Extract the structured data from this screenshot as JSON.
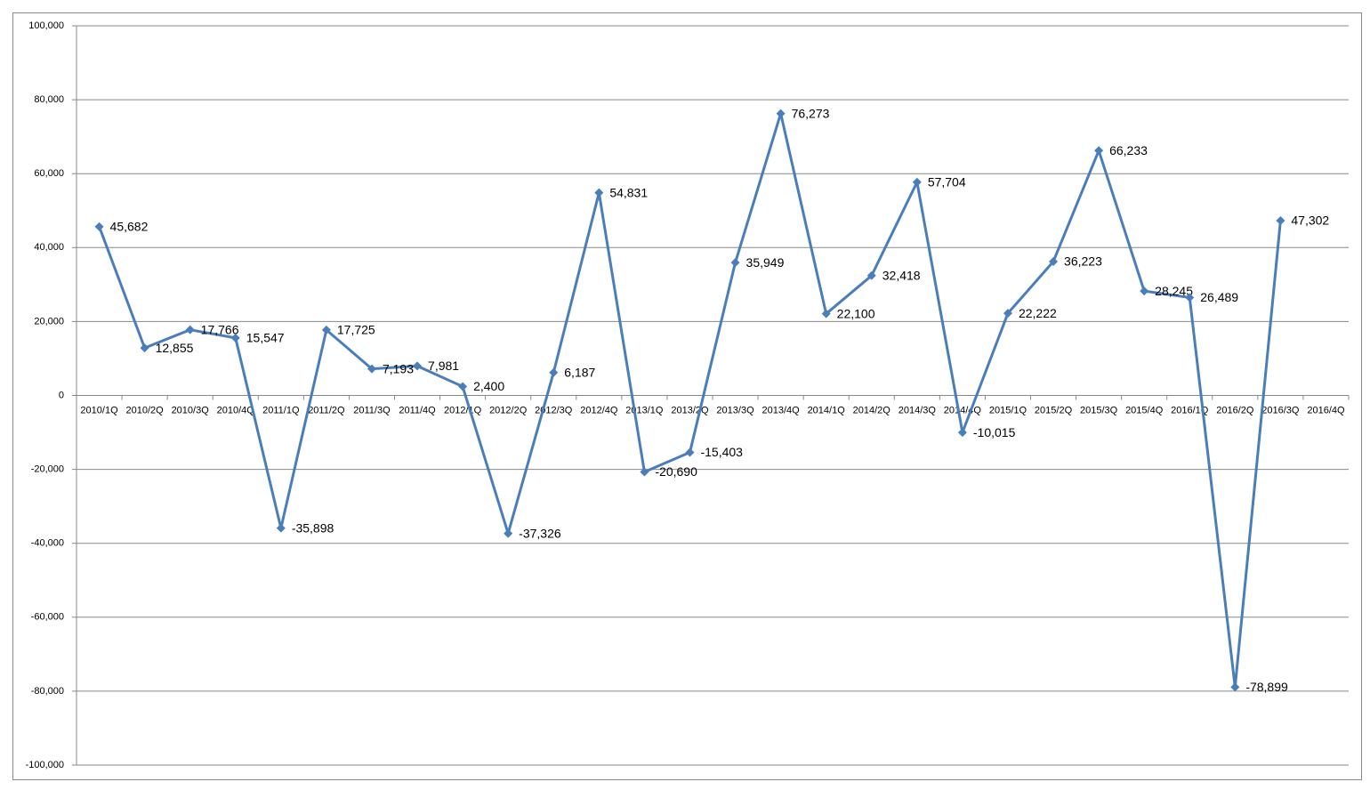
{
  "chart_data": {
    "type": "line",
    "categories": [
      "2010/1Q",
      "2010/2Q",
      "2010/3Q",
      "2010/4Q",
      "2011/1Q",
      "2011/2Q",
      "2011/3Q",
      "2011/4Q",
      "2012/1Q",
      "2012/2Q",
      "2012/3Q",
      "2012/4Q",
      "2013/1Q",
      "2013/2Q",
      "2013/3Q",
      "2013/4Q",
      "2014/1Q",
      "2014/2Q",
      "2014/3Q",
      "2014/4Q",
      "2015/1Q",
      "2015/2Q",
      "2015/3Q",
      "2015/4Q",
      "2016/1Q",
      "2016/2Q",
      "2016/3Q",
      "2016/4Q"
    ],
    "series": [
      {
        "color": "#4a7ebb",
        "values": [
          45682,
          12855,
          17766,
          15547,
          -35898,
          17725,
          7193,
          7981,
          2400,
          -37326,
          6187,
          54831,
          -20690,
          -15403,
          35949,
          76273,
          22100,
          32418,
          57704,
          -10015,
          22222,
          36223,
          66233,
          28245,
          26489,
          -78899,
          47302,
          null
        ],
        "value_labels": [
          "45,682",
          "12,855",
          "17,766",
          "15,547",
          "-35,898",
          "17,725",
          "7,193",
          "7,981",
          "2,400",
          "-37,326",
          "6,187",
          "54,831",
          "-20,690",
          "-15,403",
          "35,949",
          "76,273",
          "22,100",
          "32,418",
          "57,704",
          "-10,015",
          "22,222",
          "36,223",
          "66,233",
          "28,245",
          "26,489",
          "-78,899",
          "47,302",
          null
        ]
      }
    ],
    "ylim": [
      -100000,
      100000
    ],
    "yticks": [
      {
        "value": -100000,
        "label": "-100,000"
      },
      {
        "value": -80000,
        "label": "-80,000"
      },
      {
        "value": -60000,
        "label": "-60,000"
      },
      {
        "value": -40000,
        "label": "-40,000"
      },
      {
        "value": -20000,
        "label": "-20,000"
      },
      0,
      {
        "value": 20000,
        "label": "20,000"
      },
      {
        "value": 40000,
        "label": "40,000"
      },
      {
        "value": 60000,
        "label": "60,000"
      },
      {
        "value": 80000,
        "label": "80,000"
      },
      {
        "value": 100000,
        "label": "100,000"
      }
    ],
    "grid": true
  }
}
